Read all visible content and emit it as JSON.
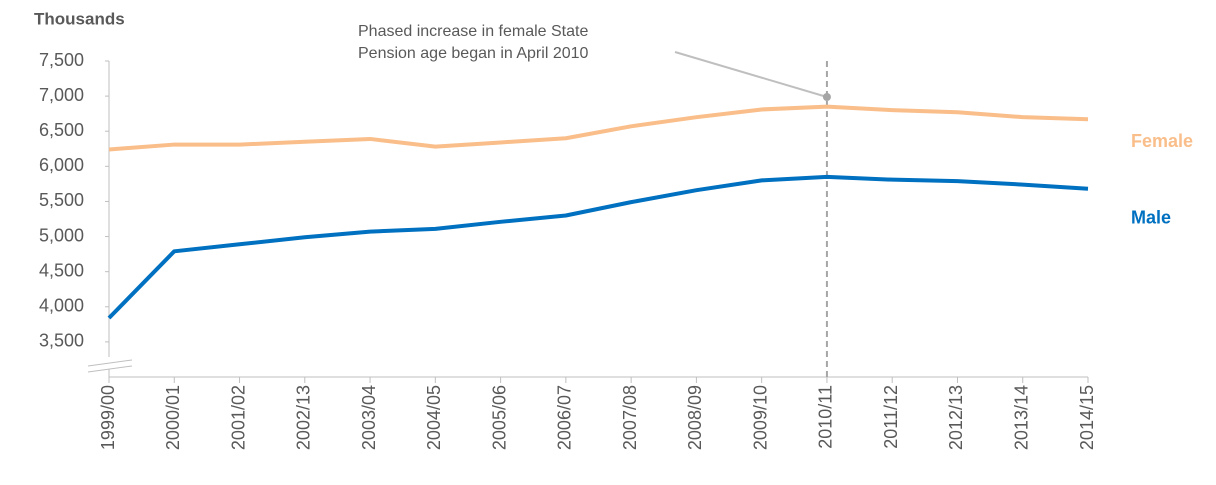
{
  "chart_data": {
    "type": "line",
    "y_label": "Thousands",
    "categories": [
      "1999/00",
      "2000/01",
      "2001/02",
      "2002/13",
      "2003/04",
      "2004/05",
      "2005/06",
      "2006/07",
      "2007/08",
      "2008/09",
      "2009/10",
      "2010/11",
      "2011/12",
      "2012/13",
      "2013/14",
      "2014/15"
    ],
    "series": [
      {
        "name": "Female",
        "color": "#f9be8a",
        "values": [
          6240,
          6310,
          6310,
          6350,
          6390,
          6280,
          6340,
          6400,
          6570,
          6700,
          6810,
          6850,
          6800,
          6770,
          6700,
          6670
        ]
      },
      {
        "name": "Male",
        "color": "#0070c0",
        "values": [
          3840,
          4790,
          4890,
          4990,
          5070,
          5110,
          5210,
          5300,
          5490,
          5660,
          5800,
          5850,
          5810,
          5790,
          5740,
          5680
        ]
      }
    ],
    "ylim": [
      3000,
      7500
    ],
    "yticks": [
      {
        "value": 3500,
        "label": "3,500"
      },
      {
        "value": 4000,
        "label": "4,000"
      },
      {
        "value": 4500,
        "label": "4,500"
      },
      {
        "value": 5000,
        "label": "5,000"
      },
      {
        "value": 5500,
        "label": "5,500"
      },
      {
        "value": 6000,
        "label": "6,000"
      },
      {
        "value": 6500,
        "label": "6,500"
      },
      {
        "value": 7000,
        "label": "7,000"
      },
      {
        "value": 7500,
        "label": "7,500"
      }
    ],
    "annotation": {
      "text": [
        "Phased increase in female State",
        "Pension age began in April 2010"
      ],
      "category": "2010/11"
    }
  }
}
